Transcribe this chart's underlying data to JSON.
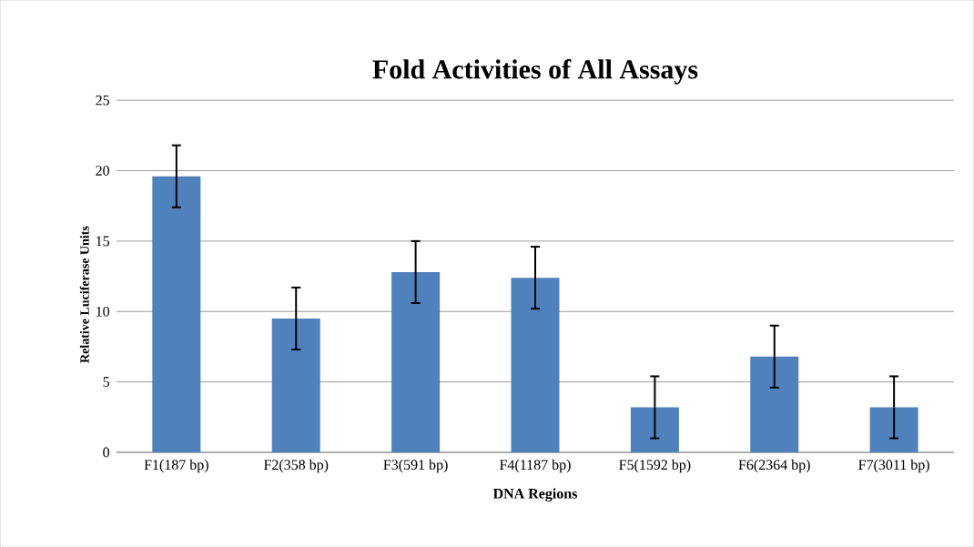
{
  "chart_data": {
    "type": "bar",
    "title": "Fold Activities of All Assays",
    "xlabel": "DNA Regions",
    "ylabel": "Relative Luciferase Units",
    "categories": [
      "F1(187 bp)",
      "F2(358 bp)",
      "F3(591 bp)",
      "F4(1187 bp)",
      "F5(1592 bp)",
      "F6(2364 bp)",
      "F7(3011 bp)"
    ],
    "values": [
      19.6,
      9.5,
      12.8,
      12.4,
      3.2,
      6.8,
      3.2
    ],
    "errors": [
      2.2,
      2.2,
      2.2,
      2.2,
      2.2,
      2.2,
      2.2
    ],
    "color": "#4f81bd",
    "ylim": [
      0,
      25
    ],
    "yticks": [
      0,
      5,
      10,
      15,
      20,
      25
    ],
    "grid": "y"
  }
}
